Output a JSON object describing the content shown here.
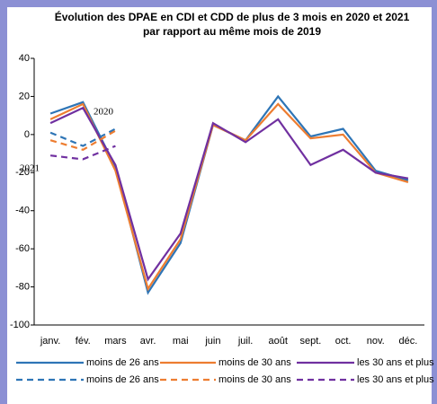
{
  "chart_data": {
    "type": "line",
    "title": [
      "Évolution des DPAE en CDI et CDD de plus de 3 mois en 2020 et 2021",
      "par rapport au même mois de 2019"
    ],
    "categories": [
      "janv.",
      "fév.",
      "mars",
      "avr.",
      "mai",
      "juin",
      "juil.",
      "août",
      "sept.",
      "oct.",
      "nov.",
      "déc."
    ],
    "series": [
      {
        "name": "moins de 26 ans",
        "color": "#2e75b6",
        "dashed": false,
        "values": [
          11,
          17,
          -17,
          -83,
          -57,
          5,
          -3,
          20,
          -1,
          3,
          -19,
          -24
        ]
      },
      {
        "name": "moins de 30 ans",
        "color": "#ed7d31",
        "dashed": false,
        "values": [
          8,
          16,
          -19,
          -81,
          -55,
          5,
          -3,
          16,
          -2,
          0,
          -20,
          -25
        ]
      },
      {
        "name": "les 30 ans et plus",
        "color": "#7030a0",
        "dashed": false,
        "values": [
          6,
          14,
          -16,
          -76,
          -52,
          6,
          -4,
          8,
          -16,
          -8,
          -20,
          -23
        ]
      },
      {
        "name": "moins de 26 ans",
        "color": "#2e75b6",
        "dashed": true,
        "values": [
          1,
          -6,
          3,
          null,
          null,
          null,
          null,
          null,
          null,
          null,
          null,
          null
        ]
      },
      {
        "name": "moins de 30 ans",
        "color": "#ed7d31",
        "dashed": true,
        "values": [
          -3,
          -8,
          2,
          null,
          null,
          null,
          null,
          null,
          null,
          null,
          null,
          null
        ]
      },
      {
        "name": "les 30 ans et plus",
        "color": "#7030a0",
        "dashed": true,
        "values": [
          -11,
          -13,
          -6,
          null,
          null,
          null,
          null,
          null,
          null,
          null,
          null,
          null
        ]
      }
    ],
    "annotations": [
      "2020",
      "2021"
    ],
    "ylim": [
      -100,
      40
    ],
    "yticks": [
      -100,
      -80,
      -60,
      -40,
      -20,
      0,
      20,
      40
    ],
    "grid": false
  }
}
